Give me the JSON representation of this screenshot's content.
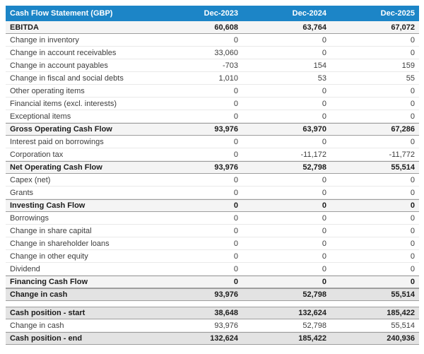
{
  "table": {
    "title": "Cash Flow Statement (GBP)",
    "columns": [
      "Dec-2023",
      "Dec-2024",
      "Dec-2025"
    ],
    "rows": [
      {
        "label": "EBITDA",
        "values": [
          "60,608",
          "63,764",
          "67,072"
        ],
        "style": "subtotal",
        "gap_before": false
      },
      {
        "label": "Change in inventory",
        "values": [
          "0",
          "0",
          "0"
        ],
        "style": "normal",
        "gap_before": false
      },
      {
        "label": "Change in account receivables",
        "values": [
          "33,060",
          "0",
          "0"
        ],
        "style": "normal",
        "gap_before": false
      },
      {
        "label": "Change in account payables",
        "values": [
          "-703",
          "154",
          "159"
        ],
        "style": "normal",
        "gap_before": false
      },
      {
        "label": "Change in fiscal and social debts",
        "values": [
          "1,010",
          "53",
          "55"
        ],
        "style": "normal",
        "gap_before": false
      },
      {
        "label": "Other operating items",
        "values": [
          "0",
          "0",
          "0"
        ],
        "style": "normal",
        "gap_before": false
      },
      {
        "label": "Financial items (excl. interests)",
        "values": [
          "0",
          "0",
          "0"
        ],
        "style": "normal",
        "gap_before": false
      },
      {
        "label": "Exceptional items",
        "values": [
          "0",
          "0",
          "0"
        ],
        "style": "normal",
        "gap_before": false
      },
      {
        "label": "Gross Operating Cash Flow",
        "values": [
          "93,976",
          "63,970",
          "67,286"
        ],
        "style": "subtotal",
        "gap_before": false
      },
      {
        "label": "Interest paid on borrowings",
        "values": [
          "0",
          "0",
          "0"
        ],
        "style": "normal",
        "gap_before": false
      },
      {
        "label": "Corporation tax",
        "values": [
          "0",
          "-11,172",
          "-11,772"
        ],
        "style": "normal",
        "gap_before": false
      },
      {
        "label": "Net Operating Cash Flow",
        "values": [
          "93,976",
          "52,798",
          "55,514"
        ],
        "style": "subtotal",
        "gap_before": false
      },
      {
        "label": "Capex (net)",
        "values": [
          "0",
          "0",
          "0"
        ],
        "style": "normal",
        "gap_before": false
      },
      {
        "label": "Grants",
        "values": [
          "0",
          "0",
          "0"
        ],
        "style": "normal",
        "gap_before": false
      },
      {
        "label": "Investing Cash Flow",
        "values": [
          "0",
          "0",
          "0"
        ],
        "style": "subtotal",
        "gap_before": false
      },
      {
        "label": "Borrowings",
        "values": [
          "0",
          "0",
          "0"
        ],
        "style": "normal",
        "gap_before": false
      },
      {
        "label": "Change in share capital",
        "values": [
          "0",
          "0",
          "0"
        ],
        "style": "normal",
        "gap_before": false
      },
      {
        "label": "Change in shareholder loans",
        "values": [
          "0",
          "0",
          "0"
        ],
        "style": "normal",
        "gap_before": false
      },
      {
        "label": "Change in other equity",
        "values": [
          "0",
          "0",
          "0"
        ],
        "style": "normal",
        "gap_before": false
      },
      {
        "label": "Dividend",
        "values": [
          "0",
          "0",
          "0"
        ],
        "style": "normal",
        "gap_before": false
      },
      {
        "label": "Financing Cash Flow",
        "values": [
          "0",
          "0",
          "0"
        ],
        "style": "subtotal",
        "gap_before": false
      },
      {
        "label": "Change in cash",
        "values": [
          "93,976",
          "52,798",
          "55,514"
        ],
        "style": "total",
        "gap_before": false
      },
      {
        "label": "Cash position - start",
        "values": [
          "38,648",
          "132,624",
          "185,422"
        ],
        "style": "total",
        "gap_before": true
      },
      {
        "label": "Change in cash",
        "values": [
          "93,976",
          "52,798",
          "55,514"
        ],
        "style": "normal",
        "gap_before": false
      },
      {
        "label": "Cash position - end",
        "values": [
          "132,624",
          "185,422",
          "240,936"
        ],
        "style": "total",
        "gap_before": false
      }
    ]
  },
  "colors": {
    "header_bg": "#1c85c7",
    "header_text": "#ffffff",
    "subtotal_bg": "#f4f4f4",
    "total_bg": "#e3e3e3",
    "dark_border": "#9e9e9e",
    "light_border": "#e9e9e9"
  }
}
